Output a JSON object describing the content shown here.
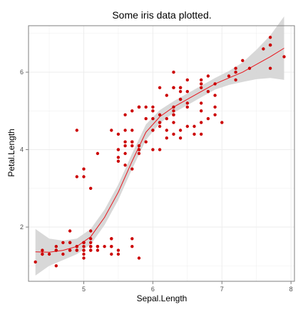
{
  "chart_data": {
    "type": "scatter",
    "title": "Some iris data plotted.",
    "xlabel": "Sepal.Length",
    "ylabel": "Petal.Length",
    "xlim": [
      4.2,
      8.05
    ],
    "ylim": [
      0.6,
      7.2
    ],
    "xticks": [
      5,
      6,
      7,
      8
    ],
    "yticks": [
      2,
      4,
      6
    ],
    "grid": true,
    "legend": "none",
    "colors": {
      "points": "#cc0000",
      "smooth_line": "#e8141b",
      "ribbon": "#d4d4d4",
      "panel_border": "#7f7f7f",
      "grid": "#ededed"
    },
    "series": [
      {
        "type": "scatter",
        "points": [
          [
            5.1,
            1.4
          ],
          [
            4.9,
            1.4
          ],
          [
            4.7,
            1.3
          ],
          [
            4.6,
            1.5
          ],
          [
            5.0,
            1.4
          ],
          [
            5.4,
            1.7
          ],
          [
            4.6,
            1.4
          ],
          [
            5.0,
            1.5
          ],
          [
            4.4,
            1.4
          ],
          [
            4.9,
            1.5
          ],
          [
            5.4,
            1.5
          ],
          [
            4.8,
            1.6
          ],
          [
            4.8,
            1.4
          ],
          [
            4.3,
            1.1
          ],
          [
            5.8,
            1.2
          ],
          [
            5.7,
            1.5
          ],
          [
            5.4,
            1.3
          ],
          [
            5.1,
            1.4
          ],
          [
            5.7,
            1.7
          ],
          [
            5.1,
            1.5
          ],
          [
            5.4,
            1.7
          ],
          [
            5.1,
            1.5
          ],
          [
            4.6,
            1.0
          ],
          [
            5.1,
            1.7
          ],
          [
            4.8,
            1.9
          ],
          [
            5.0,
            1.6
          ],
          [
            5.0,
            1.6
          ],
          [
            5.2,
            1.5
          ],
          [
            5.2,
            1.4
          ],
          [
            4.7,
            1.6
          ],
          [
            4.8,
            1.6
          ],
          [
            5.4,
            1.5
          ],
          [
            5.2,
            1.5
          ],
          [
            5.5,
            1.4
          ],
          [
            4.9,
            1.5
          ],
          [
            5.0,
            1.2
          ],
          [
            5.5,
            1.3
          ],
          [
            4.9,
            1.4
          ],
          [
            4.4,
            1.3
          ],
          [
            5.1,
            1.5
          ],
          [
            5.0,
            1.3
          ],
          [
            4.5,
            1.3
          ],
          [
            4.4,
            1.3
          ],
          [
            5.0,
            1.6
          ],
          [
            5.1,
            1.9
          ],
          [
            4.8,
            1.4
          ],
          [
            5.1,
            1.6
          ],
          [
            4.6,
            1.4
          ],
          [
            5.3,
            1.5
          ],
          [
            5.0,
            1.4
          ],
          [
            7.0,
            4.7
          ],
          [
            6.4,
            4.5
          ],
          [
            6.9,
            4.9
          ],
          [
            5.5,
            4.0
          ],
          [
            6.5,
            4.6
          ],
          [
            5.7,
            4.5
          ],
          [
            6.3,
            4.7
          ],
          [
            4.9,
            3.3
          ],
          [
            6.6,
            4.6
          ],
          [
            5.2,
            3.9
          ],
          [
            5.0,
            3.5
          ],
          [
            5.9,
            4.2
          ],
          [
            6.0,
            4.0
          ],
          [
            6.1,
            4.7
          ],
          [
            5.6,
            3.6
          ],
          [
            6.7,
            4.4
          ],
          [
            5.6,
            4.5
          ],
          [
            5.8,
            4.1
          ],
          [
            6.2,
            4.5
          ],
          [
            5.6,
            3.9
          ],
          [
            5.9,
            4.8
          ],
          [
            6.1,
            4.0
          ],
          [
            6.3,
            4.9
          ],
          [
            6.1,
            4.7
          ],
          [
            6.4,
            4.3
          ],
          [
            6.6,
            4.4
          ],
          [
            6.8,
            4.8
          ],
          [
            6.7,
            5.0
          ],
          [
            6.0,
            4.5
          ],
          [
            5.7,
            3.5
          ],
          [
            5.5,
            3.8
          ],
          [
            5.5,
            3.7
          ],
          [
            5.8,
            3.9
          ],
          [
            6.0,
            5.1
          ],
          [
            5.4,
            4.5
          ],
          [
            6.0,
            4.5
          ],
          [
            6.7,
            4.7
          ],
          [
            6.3,
            4.4
          ],
          [
            5.6,
            4.1
          ],
          [
            5.5,
            4.0
          ],
          [
            5.5,
            4.4
          ],
          [
            6.1,
            4.6
          ],
          [
            5.8,
            4.0
          ],
          [
            5.0,
            3.3
          ],
          [
            5.6,
            4.2
          ],
          [
            5.7,
            4.2
          ],
          [
            5.7,
            4.2
          ],
          [
            6.2,
            4.3
          ],
          [
            5.1,
            3.0
          ],
          [
            5.7,
            4.1
          ],
          [
            6.3,
            6.0
          ],
          [
            5.8,
            5.1
          ],
          [
            7.1,
            5.9
          ],
          [
            6.3,
            5.6
          ],
          [
            6.5,
            5.8
          ],
          [
            7.6,
            6.6
          ],
          [
            4.9,
            4.5
          ],
          [
            7.3,
            6.3
          ],
          [
            6.7,
            5.8
          ],
          [
            7.2,
            6.1
          ],
          [
            6.5,
            5.1
          ],
          [
            6.4,
            5.3
          ],
          [
            6.8,
            5.5
          ],
          [
            5.7,
            5.0
          ],
          [
            5.8,
            5.1
          ],
          [
            6.4,
            5.3
          ],
          [
            6.5,
            5.5
          ],
          [
            7.7,
            6.7
          ],
          [
            7.7,
            6.9
          ],
          [
            6.0,
            5.0
          ],
          [
            6.9,
            5.7
          ],
          [
            5.6,
            4.9
          ],
          [
            7.7,
            6.7
          ],
          [
            6.3,
            4.9
          ],
          [
            6.7,
            5.7
          ],
          [
            7.2,
            6.0
          ],
          [
            6.2,
            4.8
          ],
          [
            6.1,
            4.9
          ],
          [
            6.4,
            5.6
          ],
          [
            7.2,
            5.8
          ],
          [
            7.4,
            6.1
          ],
          [
            7.9,
            6.4
          ],
          [
            6.4,
            5.6
          ],
          [
            6.3,
            5.1
          ],
          [
            6.1,
            5.6
          ],
          [
            7.7,
            6.1
          ],
          [
            6.3,
            5.6
          ],
          [
            6.4,
            5.5
          ],
          [
            6.0,
            4.8
          ],
          [
            6.9,
            5.4
          ],
          [
            6.7,
            5.6
          ],
          [
            6.9,
            5.1
          ],
          [
            5.8,
            5.1
          ],
          [
            6.8,
            5.9
          ],
          [
            6.7,
            5.7
          ],
          [
            6.7,
            5.2
          ],
          [
            6.3,
            5.0
          ],
          [
            6.5,
            5.2
          ],
          [
            6.2,
            5.4
          ],
          [
            5.9,
            5.1
          ]
        ]
      },
      {
        "type": "smooth",
        "x": [
          4.3,
          4.5,
          4.7,
          4.9,
          5.1,
          5.3,
          5.5,
          5.7,
          5.9,
          6.1,
          6.3,
          6.5,
          6.7,
          6.9,
          7.1,
          7.3,
          7.5,
          7.7,
          7.9
        ],
        "y": [
          1.36,
          1.35,
          1.4,
          1.5,
          1.75,
          2.25,
          2.9,
          3.7,
          4.45,
          4.85,
          5.1,
          5.3,
          5.5,
          5.7,
          5.85,
          6.0,
          6.2,
          6.4,
          6.62
        ],
        "lower": [
          0.75,
          1.0,
          1.15,
          1.3,
          1.55,
          2.05,
          2.7,
          3.5,
          4.25,
          4.68,
          4.95,
          5.15,
          5.35,
          5.55,
          5.67,
          5.75,
          5.82,
          5.85,
          5.8
        ],
        "upper": [
          1.95,
          1.7,
          1.65,
          1.7,
          1.95,
          2.45,
          3.1,
          3.9,
          4.65,
          5.02,
          5.25,
          5.45,
          5.65,
          5.85,
          6.03,
          6.25,
          6.58,
          6.95,
          7.44
        ]
      }
    ]
  }
}
